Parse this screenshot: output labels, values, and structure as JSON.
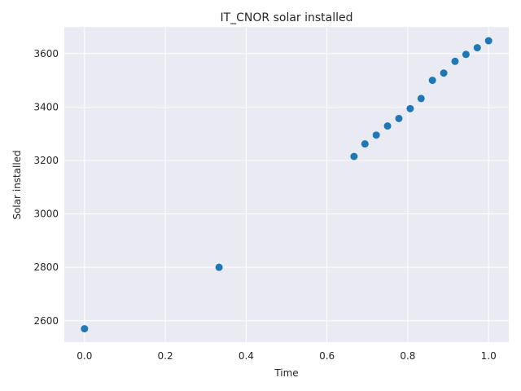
{
  "chart_data": {
    "type": "scatter",
    "title": "IT_CNOR solar installed",
    "xlabel": "Time",
    "ylabel": "Solar installed",
    "xlim": [
      -0.05,
      1.05
    ],
    "ylim": [
      2520,
      3700
    ],
    "xticks": [
      0.0,
      0.2,
      0.4,
      0.6,
      0.8,
      1.0
    ],
    "xtick_labels": [
      "0.0",
      "0.2",
      "0.4",
      "0.6",
      "0.8",
      "1.0"
    ],
    "yticks": [
      2600,
      2800,
      3000,
      3200,
      3400,
      3600
    ],
    "ytick_labels": [
      "2600",
      "2800",
      "3000",
      "3200",
      "3400",
      "3600"
    ],
    "grid": true,
    "background_color": "#eaeaf2",
    "grid_color": "#ffffff",
    "marker_color": "#1f77b4",
    "series": [
      {
        "x": [
          0.0,
          0.333,
          0.667,
          0.694,
          0.722,
          0.75,
          0.778,
          0.806,
          0.833,
          0.861,
          0.889,
          0.917,
          0.944,
          0.972,
          1.0
        ],
        "y": [
          2570,
          2800,
          3215,
          3262,
          3295,
          3329,
          3357,
          3394,
          3432,
          3500,
          3527,
          3571,
          3597,
          3622,
          3648
        ]
      }
    ]
  }
}
